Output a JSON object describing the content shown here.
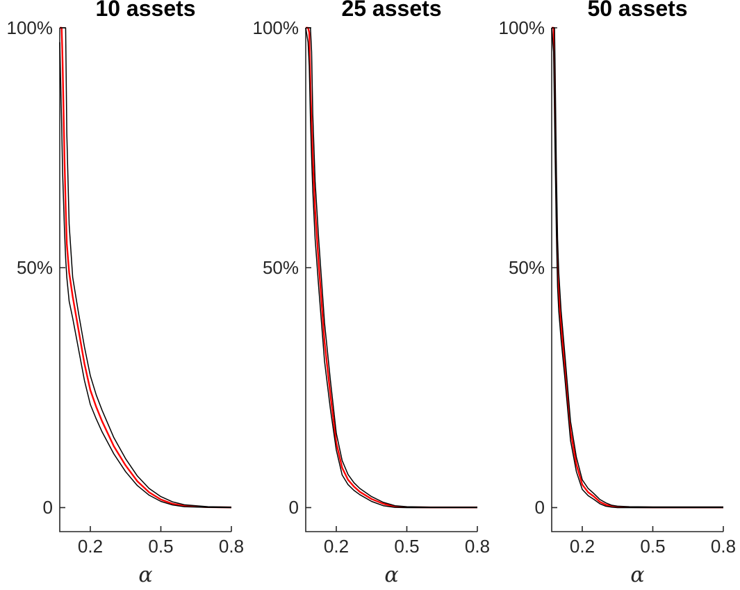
{
  "figure": {
    "background": "#ffffff",
    "axis_color": "#262626",
    "title_color": "#000000",
    "band_color": "#000000",
    "center_line_color": "#ff0000"
  },
  "panels": [
    {
      "title": "10 assets",
      "xlabel": "α",
      "yticks": [
        {
          "value": 100,
          "label": "100%"
        },
        {
          "value": 50,
          "label": "50%"
        },
        {
          "value": 0,
          "label": "0"
        }
      ],
      "xticks": [
        {
          "value": 0.2,
          "label": "0.2"
        },
        {
          "value": 0.5,
          "label": "0.5"
        },
        {
          "value": 0.8,
          "label": "0.8"
        }
      ]
    },
    {
      "title": "25 assets",
      "xlabel": "α",
      "yticks": [
        {
          "value": 100,
          "label": "100%"
        },
        {
          "value": 50,
          "label": "50%"
        },
        {
          "value": 0,
          "label": "0"
        }
      ],
      "xticks": [
        {
          "value": 0.2,
          "label": "0.2"
        },
        {
          "value": 0.5,
          "label": "0.5"
        },
        {
          "value": 0.8,
          "label": "0.8"
        }
      ]
    },
    {
      "title": "50 assets",
      "xlabel": "α",
      "yticks": [
        {
          "value": 100,
          "label": "100%"
        },
        {
          "value": 50,
          "label": "50%"
        },
        {
          "value": 0,
          "label": "0"
        }
      ],
      "xticks": [
        {
          "value": 0.2,
          "label": "0.2"
        },
        {
          "value": 0.5,
          "label": "0.5"
        },
        {
          "value": 0.8,
          "label": "0.8"
        }
      ]
    }
  ],
  "chart_data": [
    {
      "type": "line",
      "title": "10 assets",
      "xlabel": "α",
      "ylabel": "",
      "xlim": [
        0.07,
        0.8
      ],
      "ylim": [
        -5,
        100
      ],
      "xticks": [
        0.2,
        0.5,
        0.8
      ],
      "xtick_labels": [
        "0.2",
        "0.5",
        "0.8"
      ],
      "yticks": [
        0,
        50,
        100
      ],
      "ytick_labels": [
        "0",
        "50%",
        "100%"
      ],
      "grid": false,
      "legend": "none",
      "x": [
        0.07,
        0.078,
        0.082,
        0.09,
        0.095,
        0.1,
        0.11,
        0.125,
        0.15,
        0.175,
        0.2,
        0.225,
        0.25,
        0.3,
        0.35,
        0.4,
        0.45,
        0.5,
        0.55,
        0.6,
        0.7,
        0.8
      ],
      "series": [
        {
          "name": "lower-black-band",
          "color": "#000000",
          "width": 1.5,
          "values": [
            97,
            80,
            70,
            58,
            52,
            48,
            43,
            39.5,
            33,
            26.5,
            21.5,
            18.5,
            15.8,
            11.2,
            7.5,
            4.6,
            2.6,
            1.3,
            0.55,
            0.2,
            0.05,
            0
          ]
        },
        {
          "name": "center-red-line",
          "color": "#ff0000",
          "width": 2.4,
          "values": [
            100,
            100,
            93,
            73,
            63,
            55,
            49,
            44,
            37,
            30,
            24.5,
            21,
            18,
            12.8,
            8.8,
            5.5,
            3.2,
            1.7,
            0.8,
            0.35,
            0.1,
            0.05
          ]
        },
        {
          "name": "upper-black-band",
          "color": "#000000",
          "width": 1.5,
          "values": [
            100,
            100,
            100,
            100,
            100,
            78,
            59,
            48,
            40.5,
            33.5,
            27.5,
            23.5,
            20.3,
            14.6,
            10.2,
            6.6,
            4,
            2.3,
            1.2,
            0.6,
            0.2,
            0.1
          ]
        }
      ]
    },
    {
      "type": "line",
      "title": "25 assets",
      "xlabel": "α",
      "ylabel": "",
      "xlim": [
        0.07,
        0.8
      ],
      "ylim": [
        -5,
        100
      ],
      "xticks": [
        0.2,
        0.5,
        0.8
      ],
      "xtick_labels": [
        "0.2",
        "0.5",
        "0.8"
      ],
      "yticks": [
        0,
        50,
        100
      ],
      "ytick_labels": [
        "0",
        "50%",
        "100%"
      ],
      "grid": false,
      "legend": "none",
      "x": [
        0.07,
        0.08,
        0.085,
        0.09,
        0.095,
        0.1,
        0.11,
        0.125,
        0.15,
        0.175,
        0.2,
        0.225,
        0.25,
        0.275,
        0.3,
        0.35,
        0.4,
        0.45,
        0.5,
        0.6,
        0.7,
        0.8
      ],
      "series": [
        {
          "name": "lower-black-band",
          "color": "#000000",
          "width": 1.5,
          "values": [
            100,
            97,
            92,
            81,
            73,
            66,
            56,
            46,
            30.5,
            20.5,
            12,
            6.8,
            4.8,
            3.6,
            2.7,
            1.3,
            0.4,
            0.05,
            0,
            0,
            0,
            0
          ]
        },
        {
          "name": "center-red-line",
          "color": "#ff0000",
          "width": 2.4,
          "values": [
            100,
            100,
            99,
            88,
            80,
            73,
            62,
            51,
            34.5,
            23.5,
            13.5,
            8.3,
            5.8,
            4.4,
            3.3,
            1.8,
            0.8,
            0.2,
            0.1,
            0.05,
            0.05,
            0.05
          ]
        },
        {
          "name": "upper-black-band",
          "color": "#000000",
          "width": 1.5,
          "values": [
            100,
            100,
            100,
            100,
            95,
            82,
            68,
            56,
            38.5,
            26.5,
            15.5,
            9.8,
            6.9,
            5.2,
            4,
            2.3,
            1.1,
            0.4,
            0.2,
            0.1,
            0.1,
            0.1
          ]
        }
      ]
    },
    {
      "type": "line",
      "title": "50 assets",
      "xlabel": "α",
      "ylabel": "",
      "xlim": [
        0.07,
        0.8
      ],
      "ylim": [
        -5,
        100
      ],
      "xticks": [
        0.2,
        0.5,
        0.8
      ],
      "xtick_labels": [
        "0.2",
        "0.5",
        "0.8"
      ],
      "yticks": [
        0,
        50,
        100
      ],
      "ytick_labels": [
        "0",
        "50%",
        "100%"
      ],
      "grid": false,
      "legend": "none",
      "x": [
        0.07,
        0.078,
        0.082,
        0.085,
        0.09,
        0.095,
        0.1,
        0.11,
        0.125,
        0.15,
        0.175,
        0.2,
        0.225,
        0.25,
        0.275,
        0.3,
        0.325,
        0.35,
        0.4,
        0.5,
        0.6,
        0.7,
        0.8
      ],
      "series": [
        {
          "name": "lower-black-band",
          "color": "#000000",
          "width": 1.5,
          "values": [
            100,
            95,
            82,
            72,
            57,
            46,
            41,
            35,
            27.5,
            14,
            7.5,
            3.8,
            2.5,
            1.7,
            0.8,
            0.3,
            0.1,
            0,
            0,
            0,
            0,
            0,
            0
          ]
        },
        {
          "name": "center-red-line",
          "color": "#ff0000",
          "width": 2.4,
          "values": [
            100,
            100,
            90,
            80,
            63,
            51,
            45,
            38,
            30,
            16,
            9,
            4.8,
            3.2,
            2.3,
            1.2,
            0.6,
            0.3,
            0.15,
            0.1,
            0.05,
            0.05,
            0.05,
            0.05
          ]
        },
        {
          "name": "upper-black-band",
          "color": "#000000",
          "width": 1.5,
          "values": [
            100,
            100,
            100,
            90,
            70,
            56,
            49,
            41,
            32.5,
            18,
            10.5,
            5.8,
            4,
            2.9,
            1.7,
            1,
            0.5,
            0.3,
            0.2,
            0.15,
            0.15,
            0.15,
            0.15
          ]
        }
      ]
    }
  ]
}
